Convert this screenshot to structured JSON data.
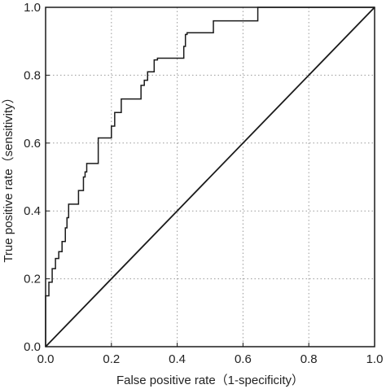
{
  "chart_data": {
    "type": "line",
    "title": "",
    "xlabel": "False positive rate（1-specificity）",
    "ylabel": "True positive rate（sensitivity）",
    "xlim": [
      0,
      1
    ],
    "ylim": [
      0,
      1
    ],
    "xticks": [
      "0.0",
      "0.2",
      "0.4",
      "0.6",
      "0.8",
      "1.0"
    ],
    "yticks": [
      "0.0",
      "0.2",
      "0.4",
      "0.6",
      "0.8",
      "1.0"
    ],
    "grid": true,
    "grid_style": "dotted",
    "legend": "none",
    "series": [
      {
        "kind": "step",
        "color": "#1a1a1a",
        "x": [
          0.0,
          0.0,
          0.01,
          0.01,
          0.02,
          0.02,
          0.03,
          0.03,
          0.04,
          0.04,
          0.05,
          0.05,
          0.06,
          0.06,
          0.065,
          0.065,
          0.07,
          0.07,
          0.1,
          0.1,
          0.115,
          0.115,
          0.12,
          0.12,
          0.125,
          0.125,
          0.16,
          0.16,
          0.2,
          0.2,
          0.21,
          0.21,
          0.23,
          0.23,
          0.29,
          0.29,
          0.3,
          0.3,
          0.31,
          0.31,
          0.33,
          0.33,
          0.34,
          0.34,
          0.42,
          0.42,
          0.425,
          0.425,
          0.43,
          0.43,
          0.51,
          0.51,
          0.645,
          0.645,
          1.0
        ],
        "y": [
          0.0,
          0.15,
          0.15,
          0.19,
          0.19,
          0.23,
          0.23,
          0.26,
          0.26,
          0.28,
          0.28,
          0.31,
          0.31,
          0.35,
          0.35,
          0.38,
          0.38,
          0.42,
          0.42,
          0.46,
          0.46,
          0.5,
          0.5,
          0.515,
          0.515,
          0.54,
          0.54,
          0.615,
          0.615,
          0.65,
          0.65,
          0.69,
          0.69,
          0.73,
          0.73,
          0.77,
          0.77,
          0.785,
          0.785,
          0.81,
          0.81,
          0.845,
          0.845,
          0.85,
          0.85,
          0.885,
          0.885,
          0.92,
          0.92,
          0.925,
          0.925,
          0.96,
          0.96,
          1.0,
          1.0
        ]
      },
      {
        "kind": "reference-diagonal",
        "color": "#1a1a1a",
        "x": [
          0,
          1
        ],
        "y": [
          0,
          1
        ]
      }
    ]
  }
}
